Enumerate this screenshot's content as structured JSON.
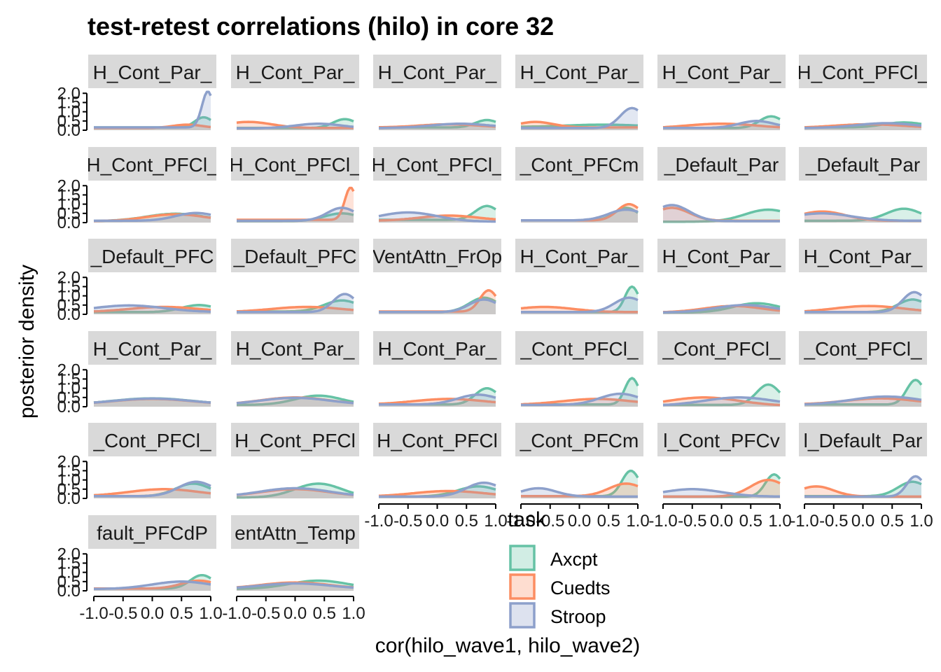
{
  "chart_data": {
    "type": "area",
    "title": "test-retest correlations (hilo) in core 32",
    "xlabel": "cor(hilo_wave1, hilo_wave2)",
    "ylabel": "posterior density",
    "xlim": [
      -1.0,
      1.0
    ],
    "ylim": [
      0,
      2.2
    ],
    "x_tick_values": [
      -1.0,
      -0.5,
      0.0,
      0.5,
      1.0
    ],
    "x_tick_labels": [
      "-1.0",
      "-0.5",
      "0.0",
      "0.5",
      "1.0"
    ],
    "y_tick_values": [
      0.0,
      0.5,
      1.0,
      1.5,
      2.0
    ],
    "y_tick_labels": [
      "0.0",
      "0.5",
      "1.0",
      "1.5",
      "2.0"
    ],
    "grid": false,
    "legend": {
      "title": "task",
      "placement": "bottom-center",
      "entries": [
        "Axcpt",
        "Cuedts",
        "Stroop"
      ]
    },
    "colors": {
      "Axcpt": "#66c2a5",
      "Cuedts": "#fc8d62",
      "Stroop": "#8da0cb",
      "strip_background": "#d9d9d9"
    },
    "series_names": [
      "Axcpt",
      "Cuedts",
      "Stroop"
    ],
    "panels": [
      {
        "label": "H_Cont_Par_",
        "peaks": [
          [
            0.88,
            0.7,
            0.15,
            0.15
          ],
          [
            0.6,
            0.3,
            0.25,
            0.12
          ],
          [
            0.95,
            2.1,
            0.1,
            0.15
          ]
        ]
      },
      {
        "label": "H_Cont_Par_",
        "peaks": [
          [
            0.85,
            0.6,
            0.2,
            0.12
          ],
          [
            -0.8,
            0.45,
            0.4,
            0.12
          ],
          [
            0.4,
            0.35,
            0.4,
            0.1
          ]
        ]
      },
      {
        "label": "H_Cont_Par_",
        "peaks": [
          [
            0.85,
            0.55,
            0.2,
            0.15
          ],
          [
            0.2,
            0.32,
            0.5,
            0.15
          ],
          [
            0.4,
            0.35,
            0.5,
            0.12
          ]
        ]
      },
      {
        "label": "H_Cont_Par_",
        "peaks": [
          [
            0.4,
            0.3,
            0.6,
            0.18
          ],
          [
            -0.75,
            0.45,
            0.3,
            0.15
          ],
          [
            0.9,
            1.2,
            0.2,
            0.12
          ]
        ]
      },
      {
        "label": "H_Cont_Par_",
        "peaks": [
          [
            0.85,
            0.75,
            0.2,
            0.12
          ],
          [
            0.0,
            0.35,
            0.6,
            0.1
          ],
          [
            0.6,
            0.5,
            0.3,
            0.12
          ]
        ]
      },
      {
        "label": "H_Cont_PFCl_",
        "peaks": [
          [
            0.7,
            0.42,
            0.35,
            0.15
          ],
          [
            0.1,
            0.32,
            0.6,
            0.12
          ],
          [
            0.4,
            0.38,
            0.5,
            0.12
          ]
        ]
      },
      {
        "label": "H_Cont_PFCl_",
        "peaks": [
          [
            0.4,
            0.48,
            0.5,
            0.08
          ],
          [
            0.4,
            0.45,
            0.5,
            0.08
          ],
          [
            0.75,
            0.52,
            0.35,
            0.1
          ]
        ]
      },
      {
        "label": "H_Cont_PFCl_",
        "peaks": [
          [
            0.8,
            0.5,
            0.3,
            0.08
          ],
          [
            0.95,
            1.9,
            0.1,
            0.15
          ],
          [
            0.8,
            0.8,
            0.25,
            0.1
          ]
        ]
      },
      {
        "label": "H_Cont_PFCl_",
        "peaks": [
          [
            0.85,
            0.9,
            0.2,
            0.15
          ],
          [
            0.2,
            0.38,
            0.5,
            0.1
          ],
          [
            -0.5,
            0.55,
            0.5,
            0.05
          ]
        ]
      },
      {
        "label": "_Cont_PFCm",
        "peaks": [
          [
            0.8,
            0.8,
            0.2,
            0.12
          ],
          [
            0.85,
            1.0,
            0.2,
            0.12
          ],
          [
            0.8,
            0.7,
            0.3,
            0.12
          ]
        ]
      },
      {
        "label": "_Default_Par",
        "peaks": [
          [
            0.8,
            0.7,
            0.4,
            0.05
          ],
          [
            -0.85,
            0.8,
            0.3,
            0.1
          ],
          [
            -0.85,
            0.95,
            0.3,
            0.08
          ]
        ]
      },
      {
        "label": "_Default_Par",
        "peaks": [
          [
            0.7,
            0.75,
            0.3,
            0.1
          ],
          [
            -0.7,
            0.6,
            0.4,
            0.1
          ],
          [
            -0.7,
            0.5,
            0.5,
            0.1
          ]
        ]
      },
      {
        "label": "_Default_PFC",
        "peaks": [
          [
            0.8,
            0.5,
            0.3,
            0.12
          ],
          [
            0.2,
            0.4,
            0.6,
            0.12
          ],
          [
            -0.4,
            0.48,
            0.6,
            0.12
          ]
        ]
      },
      {
        "label": "_Default_PFC",
        "peaks": [
          [
            0.8,
            0.75,
            0.3,
            0.15
          ],
          [
            0.2,
            0.4,
            0.6,
            0.12
          ],
          [
            0.85,
            1.1,
            0.2,
            0.12
          ]
        ]
      },
      {
        "label": "VentAttn_FrOp",
        "peaks": [
          [
            0.8,
            0.9,
            0.25,
            0.12
          ],
          [
            0.88,
            1.3,
            0.15,
            0.15
          ],
          [
            0.8,
            0.8,
            0.25,
            0.12
          ]
        ]
      },
      {
        "label": "H_Cont_Par_",
        "peaks": [
          [
            0.9,
            1.5,
            0.12,
            0.12
          ],
          [
            -0.6,
            0.4,
            0.5,
            0.12
          ],
          [
            0.85,
            0.9,
            0.25,
            0.12
          ]
        ]
      },
      {
        "label": "H_Cont_Par_",
        "peaks": [
          [
            0.6,
            0.6,
            0.4,
            0.1
          ],
          [
            0.2,
            0.45,
            0.5,
            0.1
          ],
          [
            0.4,
            0.5,
            0.5,
            0.1
          ]
        ]
      },
      {
        "label": "H_Cont_Par_",
        "peaks": [
          [
            0.85,
            0.8,
            0.25,
            0.12
          ],
          [
            0.1,
            0.45,
            0.6,
            0.1
          ],
          [
            0.88,
            1.2,
            0.2,
            0.12
          ]
        ]
      },
      {
        "label": "H_Cont_Par_",
        "peaks": [
          [
            0.0,
            0.45,
            0.7,
            0.1
          ],
          [
            0.0,
            0.42,
            0.7,
            0.1
          ],
          [
            0.0,
            0.44,
            0.7,
            0.1
          ]
        ]
      },
      {
        "label": "H_Cont_Par_",
        "peaks": [
          [
            0.4,
            0.6,
            0.4,
            0.1
          ],
          [
            0.0,
            0.5,
            0.6,
            0.1
          ],
          [
            0.0,
            0.48,
            0.6,
            0.1
          ]
        ]
      },
      {
        "label": "H_Cont_Par_",
        "peaks": [
          [
            0.85,
            1.0,
            0.2,
            0.12
          ],
          [
            0.2,
            0.42,
            0.6,
            0.12
          ],
          [
            0.7,
            0.65,
            0.35,
            0.12
          ]
        ]
      },
      {
        "label": "_Cont_PFCl_",
        "peaks": [
          [
            0.9,
            1.55,
            0.12,
            0.12
          ],
          [
            0.3,
            0.42,
            0.6,
            0.1
          ],
          [
            0.7,
            0.7,
            0.35,
            0.1
          ]
        ]
      },
      {
        "label": "_Cont_PFCl_",
        "peaks": [
          [
            0.8,
            1.2,
            0.2,
            0.1
          ],
          [
            -0.3,
            0.5,
            0.6,
            0.05
          ],
          [
            0.3,
            0.5,
            0.6,
            0.05
          ]
        ]
      },
      {
        "label": "_Cont_PFCl_",
        "peaks": [
          [
            0.9,
            1.45,
            0.15,
            0.12
          ],
          [
            0.3,
            0.45,
            0.6,
            0.12
          ],
          [
            0.4,
            0.55,
            0.6,
            0.1
          ]
        ]
      },
      {
        "label": "_Cont_PFCl_",
        "peaks": [
          [
            0.7,
            0.8,
            0.3,
            0.12
          ],
          [
            0.2,
            0.5,
            0.6,
            0.12
          ],
          [
            0.75,
            0.9,
            0.3,
            0.12
          ]
        ]
      },
      {
        "label": "H_Cont_PFCl",
        "peaks": [
          [
            0.4,
            0.8,
            0.4,
            0.05
          ],
          [
            0.0,
            0.5,
            0.6,
            0.08
          ],
          [
            0.0,
            0.55,
            0.6,
            0.08
          ]
        ]
      },
      {
        "label": "H_Cont_PFCl",
        "peaks": [
          [
            0.7,
            0.65,
            0.35,
            0.1
          ],
          [
            0.2,
            0.4,
            0.6,
            0.1
          ],
          [
            0.8,
            0.85,
            0.3,
            0.1
          ]
        ]
      },
      {
        "label": "_Cont_PFCm",
        "peaks": [
          [
            0.88,
            1.5,
            0.15,
            0.12
          ],
          [
            0.8,
            0.8,
            0.3,
            0.12
          ],
          [
            -0.7,
            0.55,
            0.3,
            0.1
          ]
        ]
      },
      {
        "label": "l_Cont_PFCv",
        "peaks": [
          [
            0.9,
            1.3,
            0.15,
            0.1
          ],
          [
            0.8,
            1.0,
            0.3,
            0.1
          ],
          [
            -0.5,
            0.5,
            0.5,
            0.1
          ]
        ]
      },
      {
        "label": "l_Default_Par",
        "peaks": [
          [
            0.85,
            0.9,
            0.25,
            0.12
          ],
          [
            -0.8,
            0.65,
            0.3,
            0.1
          ],
          [
            0.9,
            1.2,
            0.15,
            0.1
          ]
        ]
      },
      {
        "label": "fault_PFCdP",
        "peaks": [
          [
            0.85,
            0.85,
            0.2,
            0.12
          ],
          [
            0.8,
            0.55,
            0.3,
            0.12
          ],
          [
            0.5,
            0.5,
            0.5,
            0.1
          ]
        ]
      },
      {
        "label": "entAttn_Temp",
        "peaks": [
          [
            0.4,
            0.55,
            0.5,
            0.1
          ],
          [
            0.0,
            0.45,
            0.6,
            0.1
          ],
          [
            0.0,
            0.4,
            0.6,
            0.1
          ]
        ]
      }
    ]
  }
}
